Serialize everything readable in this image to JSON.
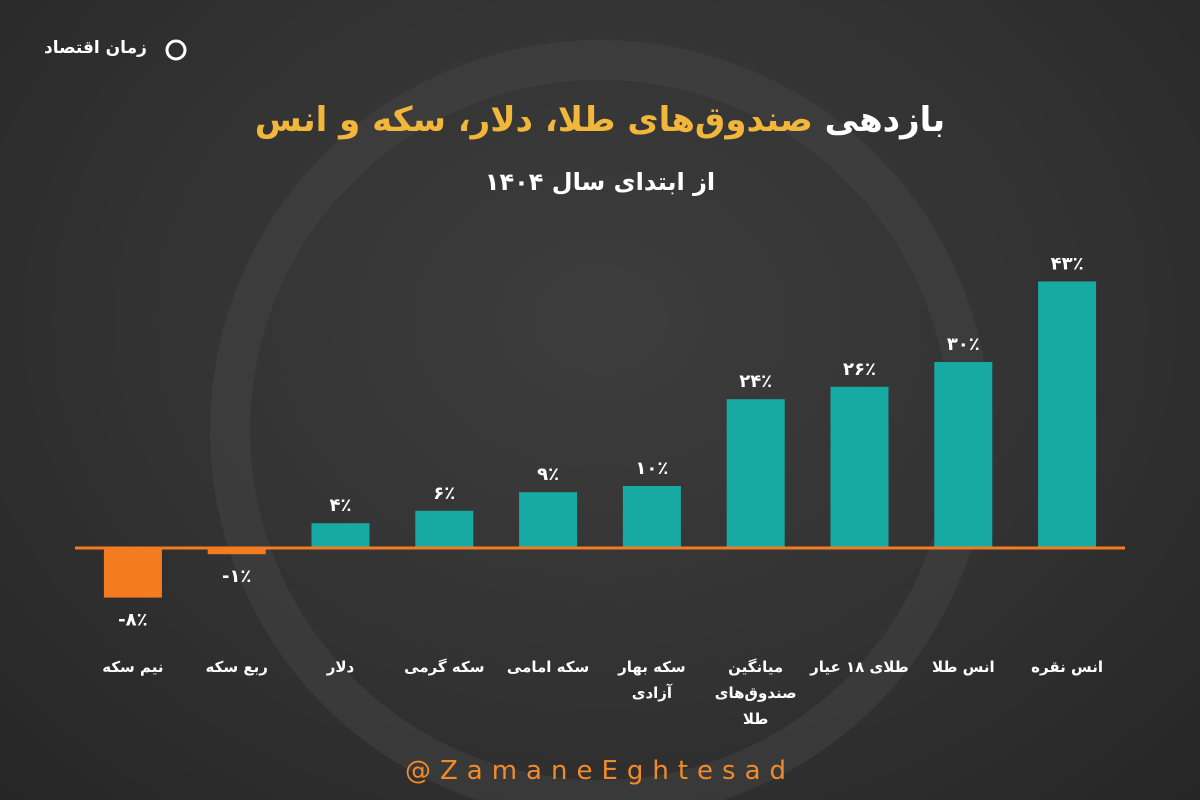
{
  "brand": "زمان اقتصاد",
  "footer": "@ZamaneEghtesad",
  "chart_data": {
    "type": "bar",
    "title": [
      "بازدهی",
      "صندوق‌های طلا، دلار، سکه و انس"
    ],
    "subtitle": "از ابتدای سال ۱۴۰۴",
    "categories": [
      "نیم سکه",
      "ربع سکه",
      "دلار",
      "سکه گرمی",
      "سکه امامی",
      "سکه بهار آزادی",
      "میانگین صندوق‌های طلا",
      "طلای ۱۸ عیار",
      "انس طلا",
      "انس نقره"
    ],
    "values": [
      -8,
      -1,
      4,
      6,
      9,
      10,
      24,
      26,
      30,
      43
    ],
    "value_labels": [
      "-۸٪",
      "-۱٪",
      "۴٪",
      "۶٪",
      "۹٪",
      "۱۰٪",
      "۲۴٪",
      "۲۶٪",
      "۳۰٪",
      "۴۳٪"
    ],
    "color": "#17aaa3",
    "negative_color": "#f47b20",
    "ylim": [
      -10,
      50
    ]
  }
}
